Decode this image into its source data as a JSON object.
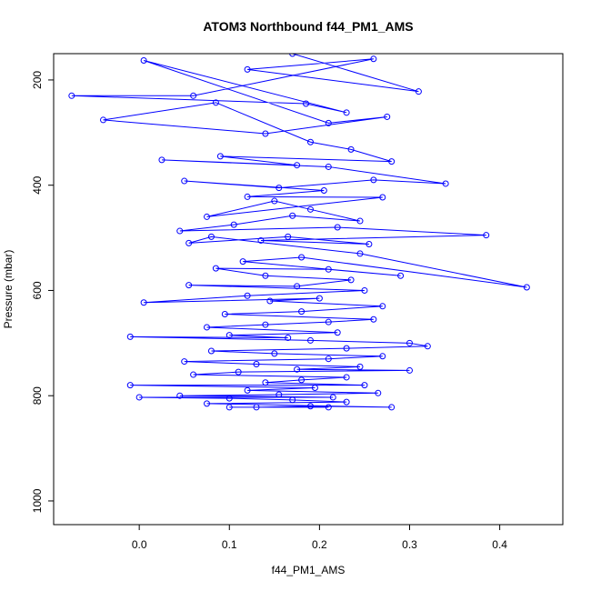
{
  "chart_data": {
    "type": "line",
    "title": "ATOM3 Northbound f44_PM1_AMS",
    "xlabel": "f44_PM1_AMS",
    "ylabel": "Pressure (mbar)",
    "xlim": [
      -0.095,
      0.47
    ],
    "ylim": [
      1045,
      150
    ],
    "y_reversed": true,
    "x_ticks": [
      0.0,
      0.1,
      0.2,
      0.3,
      0.4
    ],
    "x_tick_labels": [
      "0.0",
      "0.1",
      "0.2",
      "0.3",
      "0.4"
    ],
    "y_ticks": [
      200,
      400,
      600,
      800,
      1000
    ],
    "y_tick_labels": [
      "200",
      "400",
      "600",
      "800",
      "1000"
    ],
    "grid": false,
    "series": [
      {
        "color": "#0000ff",
        "marker": "open-circle",
        "points": [
          [
            0.17,
            150
          ],
          [
            0.31,
            222
          ],
          [
            0.12,
            180
          ],
          [
            0.26,
            160
          ],
          [
            0.06,
            230
          ],
          [
            -0.075,
            230
          ],
          [
            0.185,
            245
          ],
          [
            0.23,
            262
          ],
          [
            0.005,
            163
          ],
          [
            0.21,
            282
          ],
          [
            0.275,
            270
          ],
          [
            0.14,
            302
          ],
          [
            -0.04,
            276
          ],
          [
            0.085,
            243
          ],
          [
            0.19,
            318
          ],
          [
            0.235,
            332
          ],
          [
            0.28,
            355
          ],
          [
            0.09,
            345
          ],
          [
            0.175,
            362
          ],
          [
            0.025,
            352
          ],
          [
            0.21,
            365
          ],
          [
            0.34,
            397
          ],
          [
            0.26,
            390
          ],
          [
            0.155,
            405
          ],
          [
            0.05,
            392
          ],
          [
            0.205,
            410
          ],
          [
            0.12,
            422
          ],
          [
            0.27,
            423
          ],
          [
            0.075,
            460
          ],
          [
            0.15,
            430
          ],
          [
            0.19,
            446
          ],
          [
            0.245,
            468
          ],
          [
            0.17,
            458
          ],
          [
            0.105,
            475
          ],
          [
            0.045,
            487
          ],
          [
            0.22,
            480
          ],
          [
            0.385,
            495
          ],
          [
            0.135,
            505
          ],
          [
            0.255,
            512
          ],
          [
            0.165,
            498
          ],
          [
            0.055,
            510
          ],
          [
            0.08,
            498
          ],
          [
            0.245,
            530
          ],
          [
            0.43,
            594
          ],
          [
            0.18,
            537
          ],
          [
            0.115,
            545
          ],
          [
            0.29,
            572
          ],
          [
            0.21,
            560
          ],
          [
            0.085,
            558
          ],
          [
            0.14,
            572
          ],
          [
            0.235,
            580
          ],
          [
            0.175,
            592
          ],
          [
            0.055,
            590
          ],
          [
            0.25,
            600
          ],
          [
            0.12,
            610
          ],
          [
            0.005,
            623
          ],
          [
            0.2,
            615
          ],
          [
            0.145,
            620
          ],
          [
            0.27,
            630
          ],
          [
            0.18,
            640
          ],
          [
            0.095,
            645
          ],
          [
            0.26,
            655
          ],
          [
            0.21,
            660
          ],
          [
            0.14,
            665
          ],
          [
            0.075,
            670
          ],
          [
            0.22,
            680
          ],
          [
            0.1,
            685
          ],
          [
            0.165,
            690
          ],
          [
            -0.01,
            688
          ],
          [
            0.19,
            695
          ],
          [
            0.3,
            700
          ],
          [
            0.32,
            706
          ],
          [
            0.23,
            710
          ],
          [
            0.08,
            715
          ],
          [
            0.15,
            720
          ],
          [
            0.27,
            725
          ],
          [
            0.21,
            730
          ],
          [
            0.05,
            735
          ],
          [
            0.13,
            740
          ],
          [
            0.245,
            745
          ],
          [
            0.175,
            750
          ],
          [
            0.3,
            752
          ],
          [
            0.11,
            755
          ],
          [
            0.06,
            760
          ],
          [
            0.23,
            765
          ],
          [
            0.18,
            770
          ],
          [
            0.14,
            775
          ],
          [
            0.25,
            780
          ],
          [
            -0.01,
            780
          ],
          [
            0.195,
            785
          ],
          [
            0.12,
            790
          ],
          [
            0.265,
            795
          ],
          [
            0.155,
            798
          ],
          [
            0.045,
            800
          ],
          [
            0.215,
            803
          ],
          [
            0.0,
            803
          ],
          [
            0.1,
            805
          ],
          [
            0.17,
            808
          ],
          [
            0.23,
            812
          ],
          [
            0.075,
            815
          ],
          [
            0.28,
            822
          ],
          [
            0.19,
            820
          ],
          [
            0.13,
            822
          ],
          [
            0.21,
            822
          ],
          [
            0.1,
            822
          ]
        ]
      }
    ]
  }
}
